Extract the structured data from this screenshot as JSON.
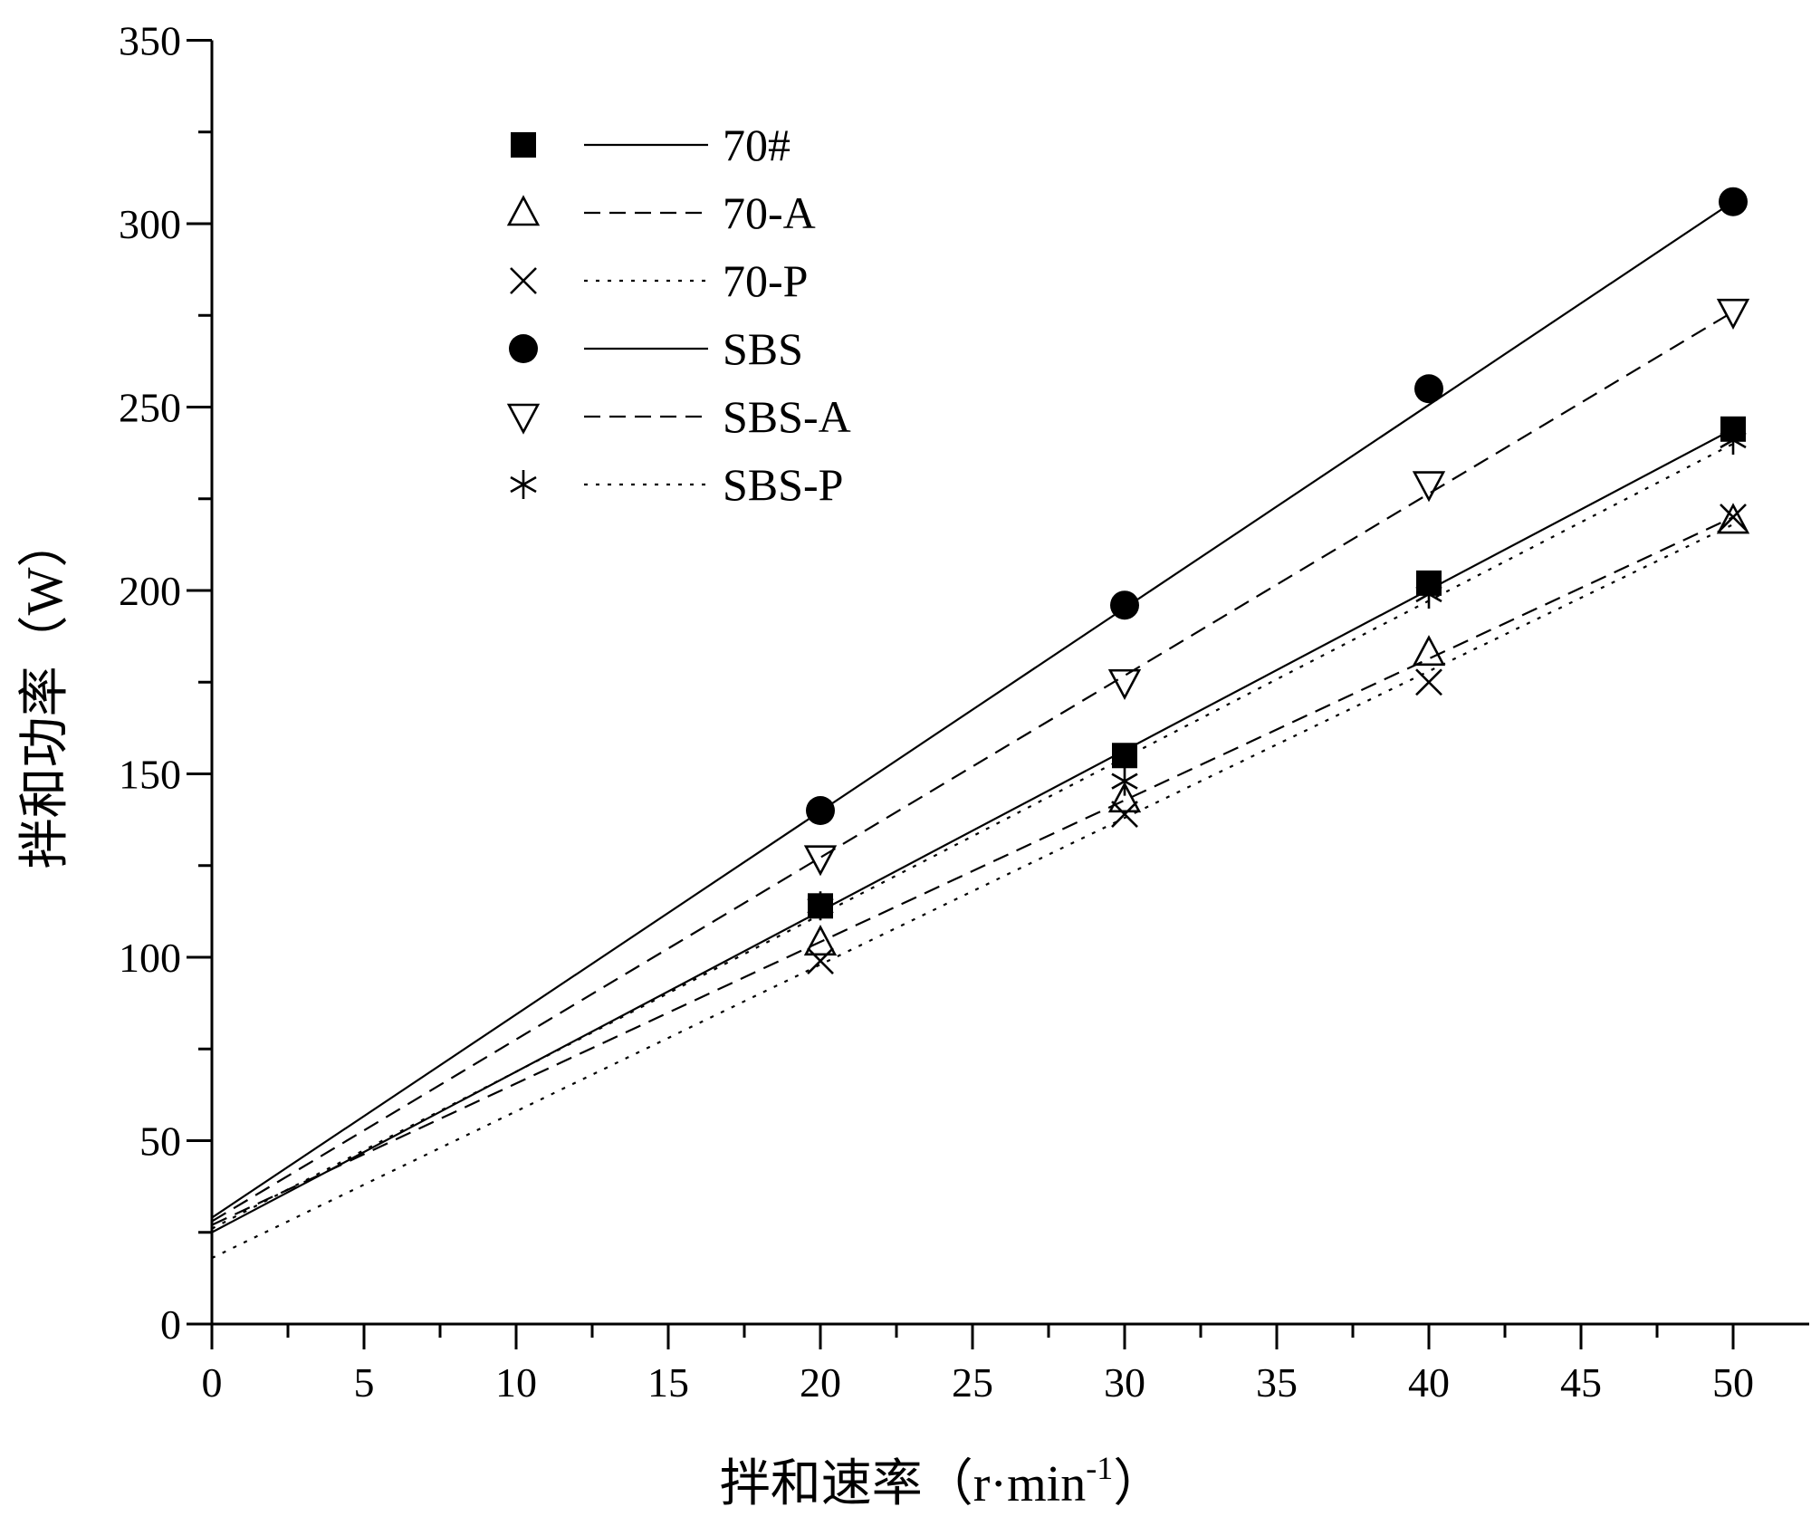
{
  "chart_data": {
    "type": "scatter",
    "title": "",
    "xlabel": "拌和速率（r·min",
    "xlabel_sup": "-1",
    "xlabel_close": "）",
    "ylabel": "拌和功率（W）",
    "xlim": [
      0,
      52.5
    ],
    "ylim": [
      0,
      350
    ],
    "xticks": [
      0,
      5,
      10,
      15,
      20,
      25,
      30,
      35,
      40,
      45,
      50
    ],
    "yticks": [
      0,
      50,
      100,
      150,
      200,
      250,
      300,
      350
    ],
    "legend_position": "top-left",
    "series": [
      {
        "name": "70#",
        "marker": "filled-square",
        "line": "solid",
        "x": [
          20,
          30,
          40,
          50
        ],
        "y": [
          114,
          155,
          202,
          244
        ],
        "fit": [
          25,
          244
        ]
      },
      {
        "name": "70-A",
        "marker": "open-triangle-up",
        "line": "dashed",
        "x": [
          20,
          30,
          40,
          50
        ],
        "y": [
          104,
          143,
          183,
          219
        ],
        "fit": [
          27,
          220
        ]
      },
      {
        "name": "70-P",
        "marker": "x-cross",
        "line": "dotted",
        "x": [
          20,
          30,
          40,
          50
        ],
        "y": [
          99,
          139,
          175,
          220
        ],
        "fit": [
          18,
          218
        ]
      },
      {
        "name": "SBS",
        "marker": "filled-circle",
        "line": "solid",
        "x": [
          20,
          30,
          40,
          50
        ],
        "y": [
          140,
          196,
          255,
          306
        ],
        "fit": [
          29,
          306
        ]
      },
      {
        "name": "SBS-A",
        "marker": "open-triangle-down",
        "line": "dashed",
        "x": [
          20,
          30,
          40,
          50
        ],
        "y": [
          127,
          175,
          229,
          276
        ],
        "fit": [
          28,
          276
        ]
      },
      {
        "name": "SBS-P",
        "marker": "asterisk",
        "line": "dotted",
        "x": [
          20,
          30,
          40,
          50
        ],
        "y": [
          114,
          148,
          199,
          241
        ],
        "fit": [
          26,
          240
        ]
      }
    ]
  }
}
